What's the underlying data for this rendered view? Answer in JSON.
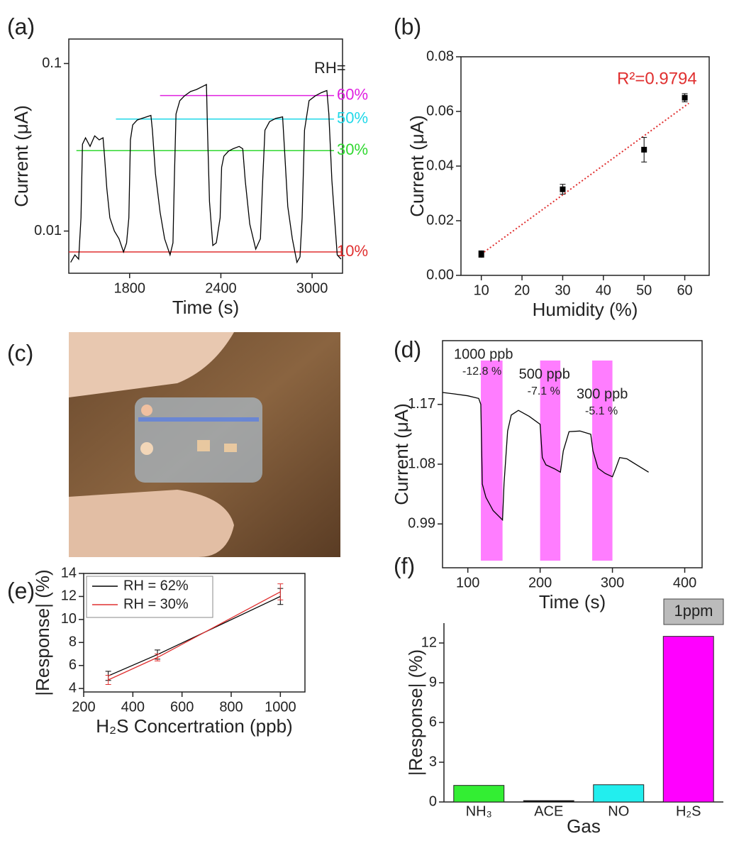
{
  "chart_data": [
    {
      "type": "line",
      "label": "(a)",
      "x_label": "Time (s)",
      "y_label": "Current (μA)",
      "log_y": true,
      "xlim": [
        1400,
        3200
      ],
      "xticks": [
        1800,
        2400,
        3000
      ],
      "ylim": [
        0.0056,
        0.14
      ],
      "yticks": [
        0.01,
        0.1
      ],
      "annotation": "RH=",
      "series": [
        {
          "color": "#000000",
          "x": [
            1412,
            1440,
            1465,
            1480,
            1490,
            1510,
            1540,
            1570,
            1600,
            1625,
            1635,
            1650,
            1670,
            1700,
            1730,
            1760,
            1780,
            1795,
            1805,
            1820,
            1850,
            1880,
            1910,
            1940,
            1950,
            1970,
            2000,
            2030,
            2066,
            2085,
            2094,
            2105,
            2130,
            2160,
            2200,
            2240,
            2280,
            2305,
            2312,
            2325,
            2347,
            2370,
            2395,
            2405,
            2420,
            2450,
            2480,
            2520,
            2544,
            2560,
            2590,
            2629,
            2660,
            2675,
            2690,
            2720,
            2760,
            2806,
            2815,
            2840,
            2870,
            2900,
            2920,
            2934,
            2950,
            2980,
            3020,
            3060,
            3097,
            3110,
            3130,
            3165,
            3190
          ],
          "values": [
            0.0065,
            0.0072,
            0.0068,
            0.012,
            0.033,
            0.036,
            0.032,
            0.037,
            0.035,
            0.036,
            0.028,
            0.018,
            0.012,
            0.01,
            0.009,
            0.0075,
            0.0085,
            0.012,
            0.035,
            0.043,
            0.046,
            0.047,
            0.048,
            0.049,
            0.04,
            0.022,
            0.013,
            0.009,
            0.0072,
            0.0085,
            0.02,
            0.05,
            0.06,
            0.064,
            0.068,
            0.07,
            0.073,
            0.075,
            0.04,
            0.015,
            0.0082,
            0.0085,
            0.012,
            0.024,
            0.028,
            0.03,
            0.031,
            0.032,
            0.031,
            0.02,
            0.011,
            0.0078,
            0.009,
            0.02,
            0.04,
            0.045,
            0.047,
            0.048,
            0.035,
            0.014,
            0.009,
            0.0065,
            0.007,
            0.012,
            0.04,
            0.06,
            0.064,
            0.067,
            0.069,
            0.05,
            0.02,
            0.0072,
            0.0068
          ]
        }
      ],
      "hlines": [
        {
          "label": "60%",
          "value": 0.0644,
          "x_start": 2000,
          "color": "#e020e0"
        },
        {
          "label": "50%",
          "value": 0.0466,
          "x_start": 1710,
          "color": "#20d8e8"
        },
        {
          "label": "30%",
          "value": 0.0302,
          "x_start": 1450,
          "color": "#30d830"
        },
        {
          "label": "10%",
          "value": 0.0075,
          "x_start": 1400,
          "color": "#e03030"
        }
      ]
    },
    {
      "type": "scatter",
      "label": "(b)",
      "x_label": "Humidity (%)",
      "y_label": "Current (μA)",
      "xlim": [
        5,
        66
      ],
      "xticks": [
        10,
        20,
        30,
        40,
        50,
        60
      ],
      "ylim": [
        0,
        0.08
      ],
      "yticks": [
        {
          "value": 0,
          "label": "0.00"
        },
        {
          "value": 0.02,
          "label": "0.02"
        },
        {
          "value": 0.04,
          "label": "0.04"
        },
        {
          "value": 0.06,
          "label": "0.06"
        },
        {
          "value": 0.08,
          "label": "0.08"
        }
      ],
      "x": [
        10,
        30,
        50,
        60
      ],
      "values": [
        0.0078,
        0.0315,
        0.046,
        0.065
      ],
      "errors": [
        0.0012,
        0.0018,
        0.0045,
        0.0015
      ],
      "color": "#000000",
      "fit": {
        "x": [
          10,
          61
        ],
        "y": [
          0.0078,
          0.063
        ],
        "color": "#e03030"
      },
      "annotation": "R²=0.9794"
    },
    {
      "type": "line",
      "label": "(d)",
      "x_label": "Time (s)",
      "y_label": "Current (μA)",
      "xlim": [
        65,
        424
      ],
      "xticks": [
        100,
        200,
        300,
        400
      ],
      "ylim": [
        0.924,
        1.266
      ],
      "yticks": [
        0.99,
        1.08,
        1.17
      ],
      "regions": [
        {
          "x": [
            118,
            148
          ],
          "color": "#ff66ff",
          "label": "1000 ppb",
          "sublabel": "-12.8 %"
        },
        {
          "x": [
            200,
            228
          ],
          "color": "#ff66ff",
          "label": "500 ppb",
          "sublabel": "-7.1 %"
        },
        {
          "x": [
            272,
            300
          ],
          "color": "#ff66ff",
          "label": "300 ppb",
          "sublabel": "-5.1 %"
        }
      ],
      "series": [
        {
          "color": "#000000",
          "x": [
            65,
            80,
            100,
            115,
            118,
            120,
            125,
            135,
            148,
            150,
            155,
            160,
            170,
            185,
            200,
            203,
            208,
            220,
            228,
            232,
            240,
            255,
            270,
            273,
            280,
            290,
            300,
            305,
            310,
            320,
            335,
            350
          ],
          "values": [
            1.188,
            1.186,
            1.183,
            1.179,
            1.17,
            1.05,
            1.03,
            1.01,
            0.996,
            1.05,
            1.13,
            1.154,
            1.161,
            1.152,
            1.14,
            1.09,
            1.079,
            1.073,
            1.068,
            1.1,
            1.129,
            1.13,
            1.125,
            1.1,
            1.074,
            1.066,
            1.061,
            1.075,
            1.09,
            1.088,
            1.078,
            1.068
          ]
        }
      ]
    },
    {
      "type": "errline",
      "label": "(e)",
      "x_label": "H₂S Concertration (ppb)",
      "y_label": "|Response| (%)",
      "xlim": [
        200,
        1100
      ],
      "xticks": [
        200,
        400,
        600,
        800,
        1000
      ],
      "ylim": [
        3.7,
        14
      ],
      "yticks": [
        4,
        6,
        8,
        10,
        12,
        14
      ],
      "x": [
        300,
        500,
        1000
      ],
      "series": [
        {
          "name": "RH = 62%",
          "color": "#000000",
          "values": [
            5.1,
            6.95,
            12.0
          ],
          "errors": [
            0.4,
            0.4,
            0.7
          ]
        },
        {
          "name": "RH = 30%",
          "color": "#e03030",
          "values": [
            4.75,
            6.7,
            12.4
          ],
          "errors": [
            0.4,
            0.3,
            0.7
          ]
        }
      ]
    },
    {
      "type": "bar",
      "label": "(f)",
      "x_label": "Gas",
      "y_label": "|Response| (%)",
      "categories": [
        "NH₃",
        "ACE",
        "NO",
        "H₂S"
      ],
      "values": [
        1.25,
        0.1,
        1.3,
        12.5
      ],
      "colors": [
        "#33ee33",
        "#000000",
        "#22eeee",
        "#ff00ff"
      ],
      "ylim": [
        0,
        13.5
      ],
      "yticks": [
        0,
        3,
        6,
        9,
        12
      ],
      "annotation": "1ppm"
    }
  ],
  "photo_panel": {
    "label": "(c)"
  }
}
